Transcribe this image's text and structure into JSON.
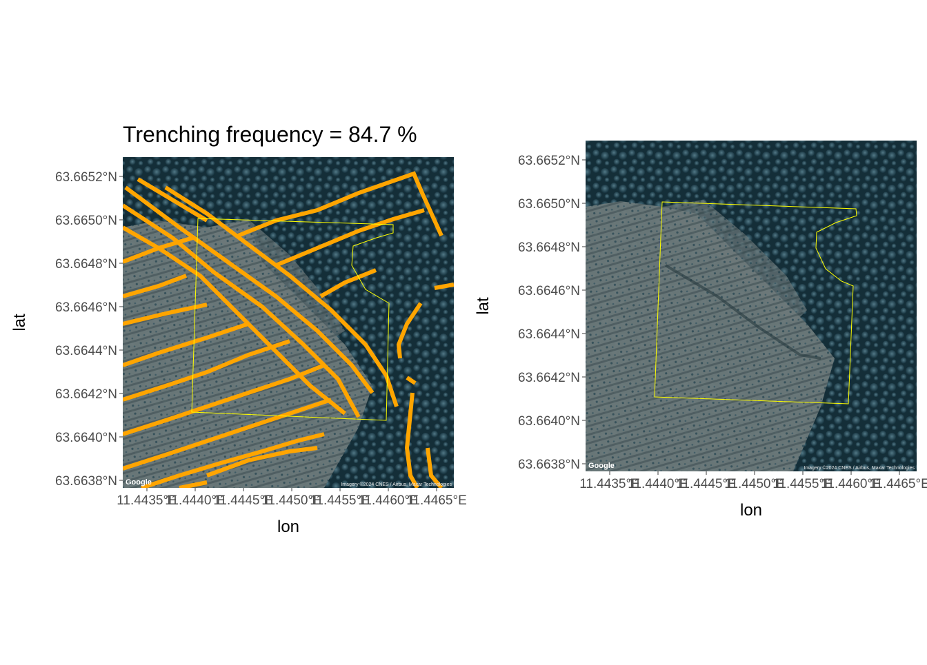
{
  "colors": {
    "trench": "#ffa500",
    "boundary": "#ffff00",
    "tick": "#4d4d4d",
    "tree_dark": "#0f2630",
    "canopy": "#3e6474",
    "clearing": "#8c9594"
  },
  "panels": [
    {
      "title": "Trenching frequency =  84.7 %",
      "xlabel": "lon",
      "ylabel": "lat",
      "x_ticks": [
        "11.4435°E",
        "11.4440°E",
        "11.4445°E",
        "11.4450°E",
        "11.4455°E",
        "11.4460°E",
        "11.4465°E"
      ],
      "y_ticks": [
        "63.6638°N",
        "63.6640°N",
        "63.6642°N",
        "63.6644°N",
        "63.6646°N",
        "63.6648°N",
        "63.6650°N",
        "63.6652°N"
      ],
      "logo": "Google",
      "credit": "Imagery ©2024 CNES / Airbus, Maxar Technologies",
      "overlay": [
        "satellite-imagery",
        "trench-lines",
        "site-boundary"
      ]
    },
    {
      "title": "",
      "xlabel": "lon",
      "ylabel": "lat",
      "x_ticks": [
        "11.4435°E",
        "11.4440°E",
        "11.4445°E",
        "11.4450°E",
        "11.4455°E",
        "11.4460°E",
        "11.4465°E"
      ],
      "y_ticks": [
        "63.6638°N",
        "63.6640°N",
        "63.6642°N",
        "63.6644°N",
        "63.6646°N",
        "63.6648°N",
        "63.6650°N",
        "63.6652°N"
      ],
      "logo": "Google",
      "credit": "Imagery ©2024 CNES / Airbus, Maxar Technologies",
      "overlay": [
        "satellite-imagery",
        "site-boundary"
      ]
    }
  ]
}
